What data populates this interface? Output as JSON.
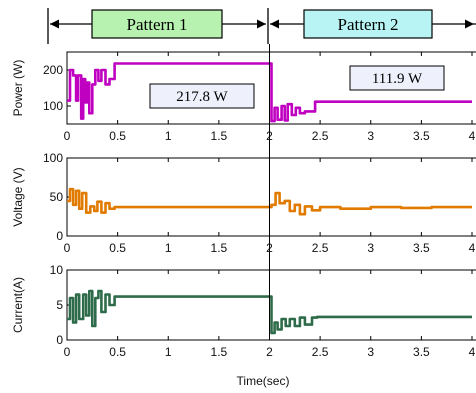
{
  "patterns": [
    {
      "label": "Pattern 1",
      "fill": "#b8f2b0"
    },
    {
      "label": "Pattern 2",
      "fill": "#b8f4f4"
    }
  ],
  "chart_data": [
    {
      "type": "line",
      "ylabel": "Power (W)",
      "xlim": [
        0,
        4
      ],
      "ylim": [
        50,
        250
      ],
      "y_ticks": [
        100,
        200
      ],
      "x_ticks": [
        0,
        0.5,
        1,
        1.5,
        2,
        2.5,
        3,
        3.5,
        4
      ],
      "color": "#c000c0",
      "annotations": [
        "217.8 W",
        "111.9 W"
      ],
      "x": [
        0,
        0.03,
        0.03,
        0.06,
        0.06,
        0.09,
        0.09,
        0.11,
        0.11,
        0.14,
        0.14,
        0.16,
        0.16,
        0.18,
        0.18,
        0.2,
        0.2,
        0.22,
        0.22,
        0.25,
        0.25,
        0.28,
        0.28,
        0.31,
        0.31,
        0.34,
        0.34,
        0.38,
        0.38,
        0.42,
        0.42,
        0.47,
        0.47,
        1.98,
        2.02,
        2.02,
        2.05,
        2.05,
        2.08,
        2.08,
        2.12,
        2.12,
        2.15,
        2.15,
        2.18,
        2.18,
        2.22,
        2.22,
        2.26,
        2.26,
        2.3,
        2.3,
        2.35,
        2.35,
        2.45,
        2.45,
        4.0
      ],
      "y": [
        115,
        115,
        200,
        200,
        185,
        185,
        115,
        115,
        185,
        185,
        65,
        65,
        175,
        175,
        110,
        110,
        165,
        165,
        80,
        80,
        160,
        160,
        200,
        200,
        170,
        170,
        200,
        200,
        160,
        160,
        175,
        175,
        218,
        218,
        218,
        58,
        58,
        95,
        95,
        62,
        62,
        100,
        100,
        60,
        60,
        105,
        105,
        75,
        75,
        95,
        95,
        80,
        80,
        85,
        85,
        112,
        112
      ]
    },
    {
      "type": "line",
      "ylabel": "Voltage (V)",
      "xlim": [
        0,
        4
      ],
      "ylim": [
        0,
        100
      ],
      "y_ticks": [
        0,
        50,
        100
      ],
      "x_ticks": [
        0,
        0.5,
        1,
        1.5,
        2,
        2.5,
        3,
        3.5,
        4
      ],
      "color": "#e07b00",
      "x": [
        0,
        0.03,
        0.03,
        0.06,
        0.06,
        0.09,
        0.09,
        0.12,
        0.12,
        0.15,
        0.15,
        0.19,
        0.19,
        0.23,
        0.23,
        0.27,
        0.27,
        0.3,
        0.3,
        0.34,
        0.34,
        0.38,
        0.38,
        0.42,
        0.42,
        0.47,
        0.47,
        1.98,
        2.02,
        2.02,
        2.06,
        2.06,
        2.1,
        2.1,
        2.15,
        2.15,
        2.2,
        2.2,
        2.25,
        2.25,
        2.3,
        2.3,
        2.35,
        2.35,
        2.42,
        2.42,
        2.5,
        2.5,
        2.7,
        2.7,
        3.0,
        3.0,
        3.3,
        3.3,
        3.6,
        3.6,
        4.0
      ],
      "y": [
        45,
        45,
        60,
        60,
        40,
        40,
        58,
        58,
        35,
        35,
        55,
        55,
        30,
        30,
        38,
        38,
        32,
        32,
        44,
        44,
        30,
        30,
        42,
        42,
        35,
        35,
        37,
        37,
        37,
        40,
        40,
        55,
        55,
        42,
        42,
        45,
        45,
        32,
        32,
        40,
        40,
        28,
        28,
        38,
        38,
        33,
        33,
        37,
        37,
        35,
        35,
        37,
        37,
        36,
        36,
        37,
        37
      ]
    },
    {
      "type": "line",
      "ylabel": "Current(A)",
      "xlim": [
        0,
        4
      ],
      "ylim": [
        0,
        10
      ],
      "y_ticks": [
        0,
        5,
        10
      ],
      "x_ticks": [
        0,
        0.5,
        1,
        1.5,
        2,
        2.5,
        3,
        3.5,
        4
      ],
      "xlabel": "Time(sec)",
      "color": "#2e6b4a",
      "x": [
        0,
        0.03,
        0.03,
        0.06,
        0.06,
        0.09,
        0.09,
        0.12,
        0.12,
        0.16,
        0.16,
        0.19,
        0.19,
        0.22,
        0.22,
        0.25,
        0.25,
        0.28,
        0.28,
        0.31,
        0.31,
        0.34,
        0.34,
        0.38,
        0.38,
        0.42,
        0.42,
        0.47,
        0.47,
        1.98,
        2.02,
        2.02,
        2.05,
        2.05,
        2.08,
        2.08,
        2.12,
        2.12,
        2.16,
        2.16,
        2.2,
        2.2,
        2.25,
        2.25,
        2.3,
        2.3,
        2.35,
        2.35,
        2.42,
        2.42,
        2.47,
        2.47,
        4.0
      ],
      "y": [
        3,
        3,
        6,
        6,
        2.5,
        2.5,
        6.5,
        6.5,
        3,
        3,
        6.5,
        6.5,
        3.5,
        3.5,
        7,
        7,
        2,
        2,
        6,
        6,
        7,
        7,
        4,
        4,
        6.5,
        6.5,
        5,
        5,
        6.2,
        6.2,
        6.2,
        1,
        1,
        2.5,
        2.5,
        1.5,
        1.5,
        3,
        3,
        2,
        2,
        3,
        3,
        2,
        2,
        3.2,
        3.2,
        2.2,
        2.2,
        3.2,
        3.2,
        3.3,
        3.3
      ]
    }
  ]
}
